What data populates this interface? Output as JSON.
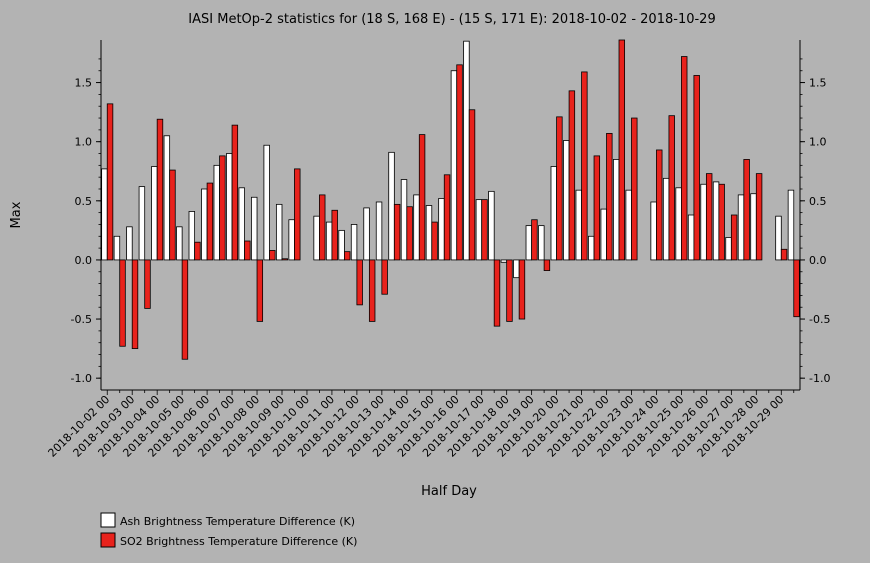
{
  "chart_data": {
    "type": "bar",
    "title": "IASI MetOp-2 statistics for (18 S, 168 E) - (15 S, 171 E): 2018-10-02 - 2018-10-29",
    "xlabel": "Half Day",
    "ylabel": "Max",
    "ylim": [
      -1.1,
      1.86
    ],
    "yticks": [
      "-1.0",
      "-0.5",
      "0.0",
      "0.5",
      "1.0",
      "1.5"
    ],
    "ytick_values": [
      -1.0,
      -0.5,
      0.0,
      0.5,
      1.0,
      1.5
    ],
    "categories": [
      "2018-10-02 00",
      "2018-10-02 12",
      "2018-10-03 00",
      "2018-10-03 12",
      "2018-10-04 00",
      "2018-10-04 12",
      "2018-10-05 00",
      "2018-10-05 12",
      "2018-10-06 00",
      "2018-10-06 12",
      "2018-10-07 00",
      "2018-10-07 12",
      "2018-10-08 00",
      "2018-10-08 12",
      "2018-10-09 00",
      "2018-10-09 12",
      "2018-10-10 00",
      "2018-10-10 12",
      "2018-10-11 00",
      "2018-10-11 12",
      "2018-10-12 00",
      "2018-10-12 12",
      "2018-10-13 00",
      "2018-10-13 12",
      "2018-10-14 00",
      "2018-10-14 12",
      "2018-10-15 00",
      "2018-10-15 12",
      "2018-10-16 00",
      "2018-10-16 12",
      "2018-10-17 00",
      "2018-10-17 12",
      "2018-10-18 00",
      "2018-10-18 12",
      "2018-10-19 00",
      "2018-10-19 12",
      "2018-10-20 00",
      "2018-10-20 12",
      "2018-10-21 00",
      "2018-10-21 12",
      "2018-10-22 00",
      "2018-10-22 12",
      "2018-10-23 00",
      "2018-10-23 12",
      "2018-10-24 00",
      "2018-10-24 12",
      "2018-10-25 00",
      "2018-10-25 12",
      "2018-10-26 00",
      "2018-10-26 12",
      "2018-10-27 00",
      "2018-10-27 12",
      "2018-10-28 00",
      "2018-10-28 12",
      "2018-10-29 00",
      "2018-10-29 12"
    ],
    "xticks": [
      "2018-10-02 00",
      "2018-10-03 00",
      "2018-10-04 00",
      "2018-10-05 00",
      "2018-10-06 00",
      "2018-10-07 00",
      "2018-10-08 00",
      "2018-10-09 00",
      "2018-10-10 00",
      "2018-10-11 00",
      "2018-10-12 00",
      "2018-10-13 00",
      "2018-10-14 00",
      "2018-10-15 00",
      "2018-10-16 00",
      "2018-10-17 00",
      "2018-10-18 00",
      "2018-10-19 00",
      "2018-10-20 00",
      "2018-10-21 00",
      "2018-10-22 00",
      "2018-10-23 00",
      "2018-10-24 00",
      "2018-10-25 00",
      "2018-10-26 00",
      "2018-10-27 00",
      "2018-10-28 00",
      "2018-10-29 00"
    ],
    "series": [
      {
        "name": "Ash Brightness Temperature Difference (K)",
        "color": "#ffffff",
        "values": [
          0.77,
          0.2,
          0.28,
          0.62,
          0.79,
          1.05,
          0.28,
          0.41,
          0.6,
          0.8,
          0.9,
          0.61,
          0.53,
          0.97,
          0.47,
          0.34,
          null,
          0.37,
          0.32,
          0.25,
          0.3,
          0.44,
          0.49,
          0.91,
          0.68,
          0.55,
          0.46,
          0.52,
          1.6,
          1.85,
          0.51,
          0.58,
          -0.02,
          -0.15,
          0.29,
          0.29,
          0.79,
          1.01,
          0.59,
          0.2,
          0.43,
          0.85,
          0.59,
          null,
          0.49,
          0.69,
          0.61,
          0.38,
          0.64,
          0.66,
          0.19,
          0.55,
          0.56,
          null,
          0.37,
          0.59
        ]
      },
      {
        "name": "SO2 Brightness Temperature Difference (K)",
        "color": "#e8221c",
        "values": [
          1.32,
          -0.73,
          -0.75,
          -0.41,
          1.19,
          0.76,
          -0.84,
          0.15,
          0.65,
          0.88,
          1.14,
          0.16,
          -0.52,
          0.08,
          0.01,
          0.77,
          null,
          0.55,
          0.42,
          0.07,
          -0.38,
          -0.52,
          -0.29,
          0.47,
          0.45,
          1.06,
          0.32,
          0.72,
          1.65,
          1.27,
          0.51,
          -0.56,
          -0.52,
          -0.5,
          0.34,
          -0.09,
          1.21,
          1.43,
          1.59,
          0.88,
          1.07,
          1.86,
          1.2,
          null,
          0.93,
          1.22,
          1.72,
          1.56,
          0.73,
          0.64,
          0.38,
          0.85,
          0.73,
          null,
          0.09,
          -0.48
        ]
      }
    ],
    "legend_position": "bottom-left"
  }
}
